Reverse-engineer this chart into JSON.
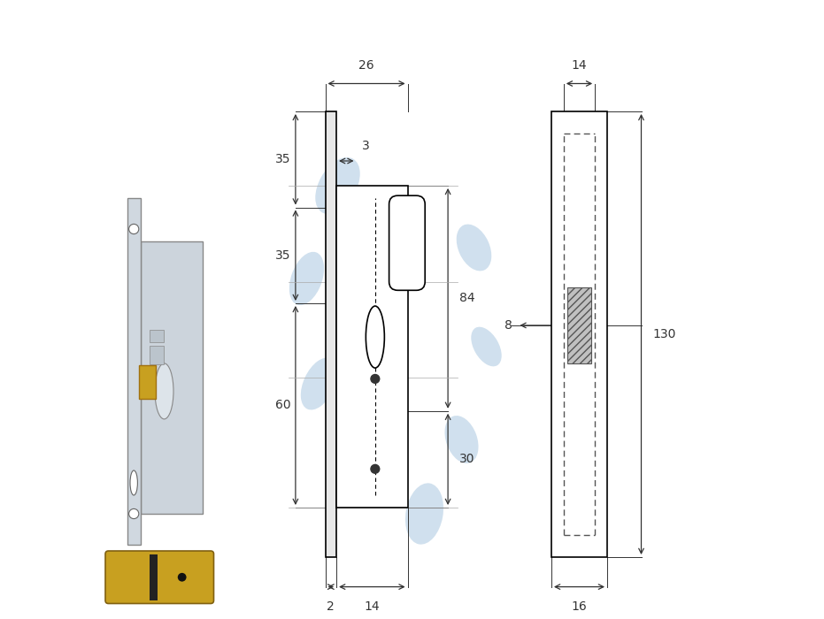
{
  "bg_color": "#ffffff",
  "line_color": "#000000",
  "dim_color": "#333333",
  "blue_color": "#aac8e0",
  "gray_color": "#b0b0b0",
  "brass_color": "#c8a020",
  "silver_color": "#d0d8e0",
  "dark_color": "#404040"
}
